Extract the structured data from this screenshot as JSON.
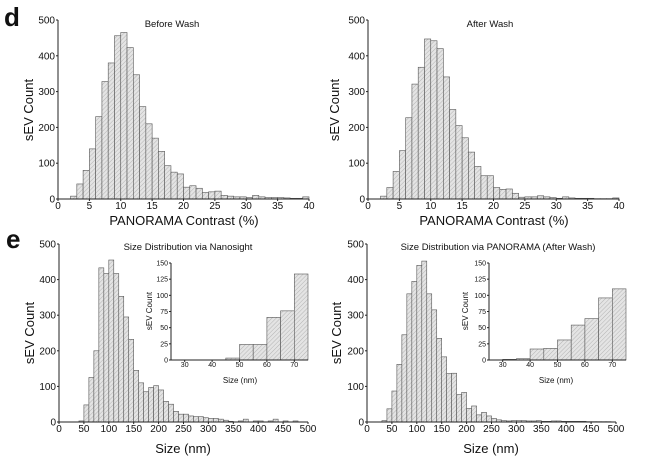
{
  "panel_labels": [
    "d",
    "e"
  ],
  "chart_data": [
    {
      "type": "bar",
      "panel": "d",
      "title": "Before Wash",
      "xlabel": "PANORAMA Contrast (%)",
      "ylabel": "sEV Count",
      "xlim": [
        0,
        40
      ],
      "ylim": [
        0,
        500
      ],
      "bin_width": 1,
      "xticks": [
        0,
        5,
        10,
        15,
        20,
        25,
        30,
        35,
        40
      ],
      "yticks": [
        0,
        100,
        200,
        300,
        400,
        500
      ],
      "bin_starts": [
        2,
        3,
        4,
        5,
        6,
        7,
        8,
        9,
        10,
        11,
        12,
        13,
        14,
        15,
        16,
        17,
        18,
        19,
        20,
        21,
        22,
        23,
        24,
        25,
        26,
        27,
        28,
        29,
        30,
        31,
        32,
        33,
        34,
        35,
        36,
        37,
        38,
        39
      ],
      "values": [
        8,
        42,
        80,
        140,
        230,
        328,
        380,
        456,
        465,
        423,
        347,
        258,
        210,
        170,
        133,
        93,
        75,
        70,
        33,
        37,
        30,
        18,
        20,
        22,
        10,
        8,
        6,
        6,
        4,
        10,
        6,
        4,
        4,
        4,
        3,
        2,
        2,
        6
      ]
    },
    {
      "type": "bar",
      "panel": "d",
      "title": "After Wash",
      "xlabel": "PANORAMA Contrast (%)",
      "ylabel": "sEV Count",
      "xlim": [
        0,
        40
      ],
      "ylim": [
        0,
        500
      ],
      "bin_width": 1,
      "xticks": [
        0,
        5,
        10,
        15,
        20,
        25,
        30,
        35,
        40
      ],
      "yticks": [
        0,
        100,
        200,
        300,
        400,
        500
      ],
      "bin_starts": [
        2,
        3,
        4,
        5,
        6,
        7,
        8,
        9,
        10,
        11,
        12,
        13,
        14,
        15,
        16,
        17,
        18,
        19,
        20,
        21,
        22,
        23,
        24,
        25,
        26,
        27,
        28,
        29,
        30,
        31,
        32,
        33,
        34,
        35,
        36,
        37,
        38,
        39
      ],
      "values": [
        8,
        32,
        77,
        135,
        227,
        321,
        368,
        447,
        442,
        420,
        341,
        250,
        205,
        171,
        131,
        91,
        65,
        65,
        32,
        27,
        28,
        16,
        5,
        6,
        6,
        9,
        6,
        4,
        2,
        6,
        3,
        2,
        2,
        2,
        1,
        1,
        1,
        3
      ]
    },
    {
      "type": "bar",
      "panel": "e",
      "title": "Size Distribution via Nanosight",
      "xlabel": "Size (nm)",
      "ylabel": "sEV Count",
      "xlim": [
        0,
        500
      ],
      "ylim": [
        0,
        500
      ],
      "bin_width": 10,
      "xticks": [
        0,
        50,
        100,
        150,
        200,
        250,
        300,
        350,
        400,
        450,
        500
      ],
      "yticks": [
        0,
        100,
        200,
        300,
        400,
        500
      ],
      "bin_starts": [
        40,
        50,
        60,
        70,
        80,
        90,
        100,
        110,
        120,
        130,
        140,
        150,
        160,
        170,
        180,
        190,
        200,
        210,
        220,
        230,
        240,
        250,
        260,
        270,
        280,
        290,
        300,
        310,
        320,
        330,
        340,
        350,
        360,
        370,
        380,
        390,
        400,
        410,
        420,
        430,
        440,
        450,
        460,
        470,
        480,
        490
      ],
      "values": [
        3,
        48,
        125,
        200,
        433,
        417,
        455,
        417,
        353,
        295,
        232,
        145,
        110,
        85,
        97,
        102,
        90,
        58,
        50,
        30,
        22,
        22,
        17,
        15,
        15,
        12,
        10,
        10,
        8,
        5,
        2,
        0,
        3,
        8,
        0,
        3,
        3,
        0,
        3,
        8,
        0,
        3,
        0,
        3,
        0,
        0
      ],
      "inset": {
        "xlabel": "Size (nm)",
        "ylabel": "sEV Count",
        "xlim": [
          25,
          75
        ],
        "ylim": [
          0,
          150
        ],
        "bin_width": 5,
        "xticks": [
          30,
          40,
          50,
          60,
          70
        ],
        "yticks": [
          0,
          25,
          50,
          75,
          100,
          125,
          150
        ],
        "bin_starts": [
          45,
          50,
          55,
          60,
          65,
          70
        ],
        "values": [
          3,
          24,
          24,
          66,
          76,
          133
        ]
      }
    },
    {
      "type": "bar",
      "panel": "e",
      "title": "Size Distribution via PANORAMA (After Wash)",
      "xlabel": "Size (nm)",
      "ylabel": "sEV Count",
      "xlim": [
        0,
        500
      ],
      "ylim": [
        0,
        500
      ],
      "bin_width": 10,
      "xticks": [
        0,
        50,
        100,
        150,
        200,
        250,
        300,
        350,
        400,
        450,
        500
      ],
      "yticks": [
        0,
        100,
        200,
        300,
        400,
        500
      ],
      "bin_starts": [
        30,
        40,
        50,
        60,
        70,
        80,
        90,
        100,
        110,
        120,
        130,
        140,
        150,
        160,
        170,
        180,
        190,
        200,
        210,
        220,
        230,
        240,
        250,
        260,
        270,
        280,
        290,
        300,
        310,
        320,
        330,
        340,
        350,
        360,
        370,
        380,
        390,
        400,
        410,
        420,
        430,
        440,
        450,
        460,
        470,
        480
      ],
      "values": [
        4,
        37,
        87,
        162,
        245,
        360,
        395,
        440,
        452,
        360,
        315,
        235,
        183,
        136,
        137,
        77,
        83,
        38,
        45,
        20,
        27,
        17,
        10,
        6,
        4,
        3,
        4,
        4,
        4,
        3,
        3,
        4,
        2,
        2,
        3,
        3,
        2,
        2,
        2,
        2,
        2,
        1,
        1,
        1,
        1,
        1
      ],
      "inset": {
        "xlabel": "Size (nm)",
        "ylabel": "sEV Count",
        "xlim": [
          25,
          75
        ],
        "ylim": [
          0,
          150
        ],
        "bin_width": 5,
        "xticks": [
          30,
          40,
          50,
          60,
          70
        ],
        "yticks": [
          0,
          25,
          50,
          75,
          100,
          125,
          150
        ],
        "bin_starts": [
          30,
          35,
          40,
          45,
          50,
          55,
          60,
          65,
          70
        ],
        "values": [
          1,
          2,
          17,
          18,
          31,
          54,
          64,
          96,
          110
        ]
      }
    }
  ],
  "colors": {
    "bar_fill": "#e4e4e4",
    "bar_edge": "#555555",
    "hatch": "#9a9a9a",
    "axis": "#222222"
  }
}
